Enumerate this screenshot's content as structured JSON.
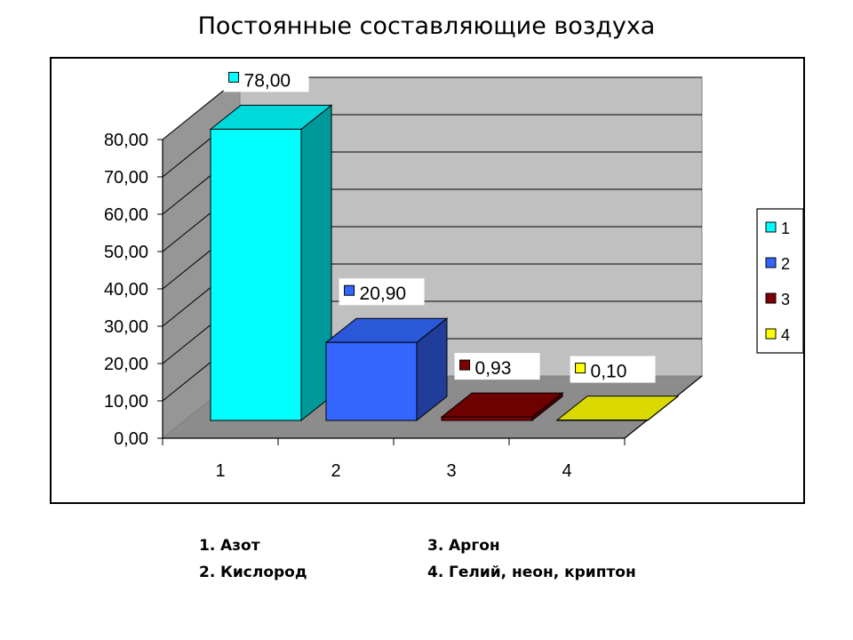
{
  "slide": {
    "title": "Постоянные составляющие воздуха"
  },
  "chart_data": {
    "type": "bar",
    "categories": [
      "1",
      "2",
      "3",
      "4"
    ],
    "values": [
      78.0,
      20.9,
      0.93,
      0.1
    ],
    "value_labels": [
      "78,00",
      "20,90",
      "0,93",
      "0,10"
    ],
    "colors": [
      "#00FFFF",
      "#3366FF",
      "#800000",
      "#FFFF00"
    ],
    "ylim": [
      0,
      80
    ],
    "yticks": [
      "0,00",
      "10,00",
      "20,00",
      "30,00",
      "40,00",
      "50,00",
      "60,00",
      "70,00",
      "80,00"
    ],
    "legend": [
      "1",
      "2",
      "3",
      "4"
    ],
    "legend_position": "right",
    "grid": true,
    "style": "3d-column"
  },
  "captions": [
    {
      "number": "1.",
      "text": "Азот"
    },
    {
      "number": "2.",
      "text": "Кислород"
    },
    {
      "number": "3.",
      "text": "Аргон"
    },
    {
      "number": "4.",
      "text": "Гелий, неон, криптон"
    }
  ]
}
